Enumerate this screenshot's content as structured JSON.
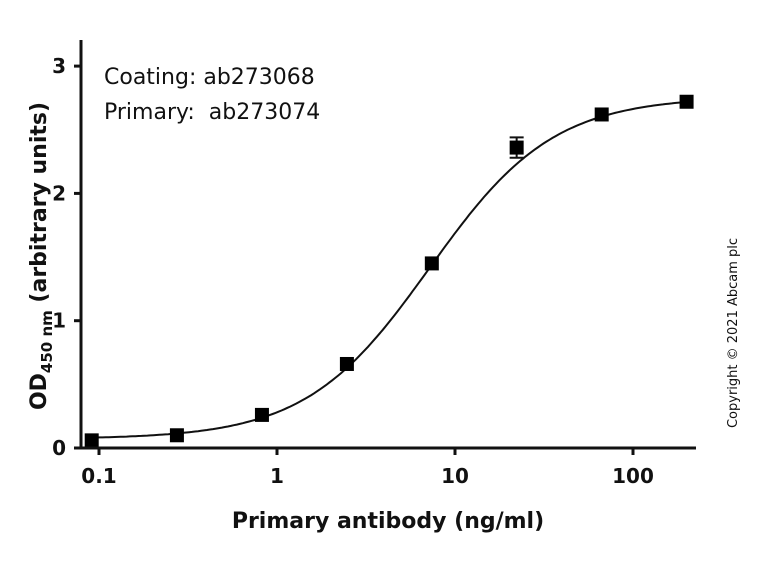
{
  "chart_data": {
    "type": "scatter",
    "title": "",
    "xlabel": "Primary antibody (ng/ml)",
    "ylabel": "OD450 nm (arbitrary units)",
    "ylabel_parts": {
      "main": "OD",
      "subscript": "450 nm",
      "rest": " (arbitrary units)"
    },
    "xscale": "log",
    "xlim": [
      0.08,
      220
    ],
    "ylim": [
      0,
      3.2
    ],
    "x_ticks": [
      0.1,
      1,
      10,
      100
    ],
    "x_tick_labels": [
      "0.1",
      "1",
      "10",
      "100"
    ],
    "y_ticks": [
      0,
      1,
      2,
      3
    ],
    "y_tick_labels": [
      "0",
      "1",
      "2",
      "3"
    ],
    "grid": false,
    "legend": null,
    "annotations": [
      "Coating: ab273068",
      "Primary:  ab273074"
    ],
    "series": [
      {
        "name": "ab273074 primary",
        "marker": "square",
        "x": [
          0.091,
          0.274,
          0.823,
          2.47,
          7.41,
          22.2,
          66.7,
          200
        ],
        "values": [
          0.06,
          0.1,
          0.26,
          0.66,
          1.45,
          2.36,
          2.62,
          2.72
        ],
        "error": [
          0.01,
          0.01,
          0.01,
          0.02,
          0.02,
          0.08,
          0.02,
          0.02
        ],
        "fit": "4-parameter logistic",
        "fit_params": {
          "bottom": 0.07,
          "top": 2.76,
          "ec50": 7.2,
          "hill": 1.25
        }
      }
    ]
  },
  "copyright": "Copyright © 2021 Abcam plc"
}
